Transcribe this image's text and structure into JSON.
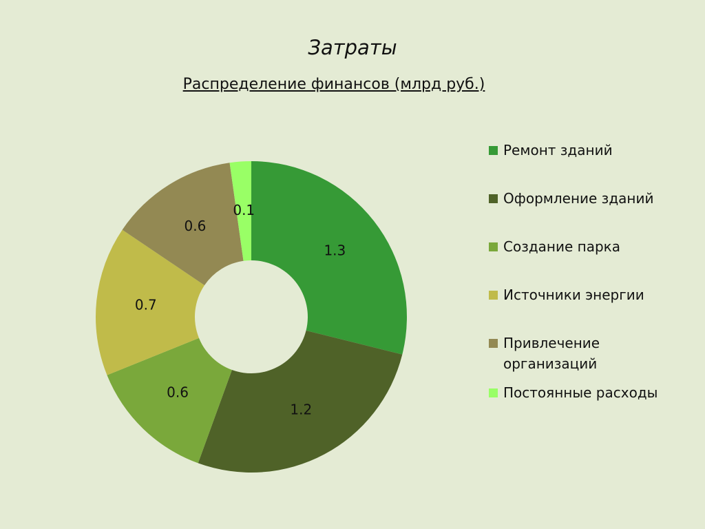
{
  "chart_data": {
    "type": "donut",
    "title": "Затраты",
    "subtitle": "Распределение финансов (млрд руб.)",
    "categories": [
      "Ремонт зданий",
      "Оформление зданий",
      "Создание парка",
      "Источники энергии",
      "Привлечение организаций",
      "Постоянные расходы"
    ],
    "values": [
      1.3,
      1.2,
      0.6,
      0.7,
      0.6,
      0.1
    ],
    "colors": [
      "#369a36",
      "#4f6228",
      "#7aa83b",
      "#c0bb4a",
      "#938953",
      "#99ff66"
    ],
    "legend": "right"
  }
}
